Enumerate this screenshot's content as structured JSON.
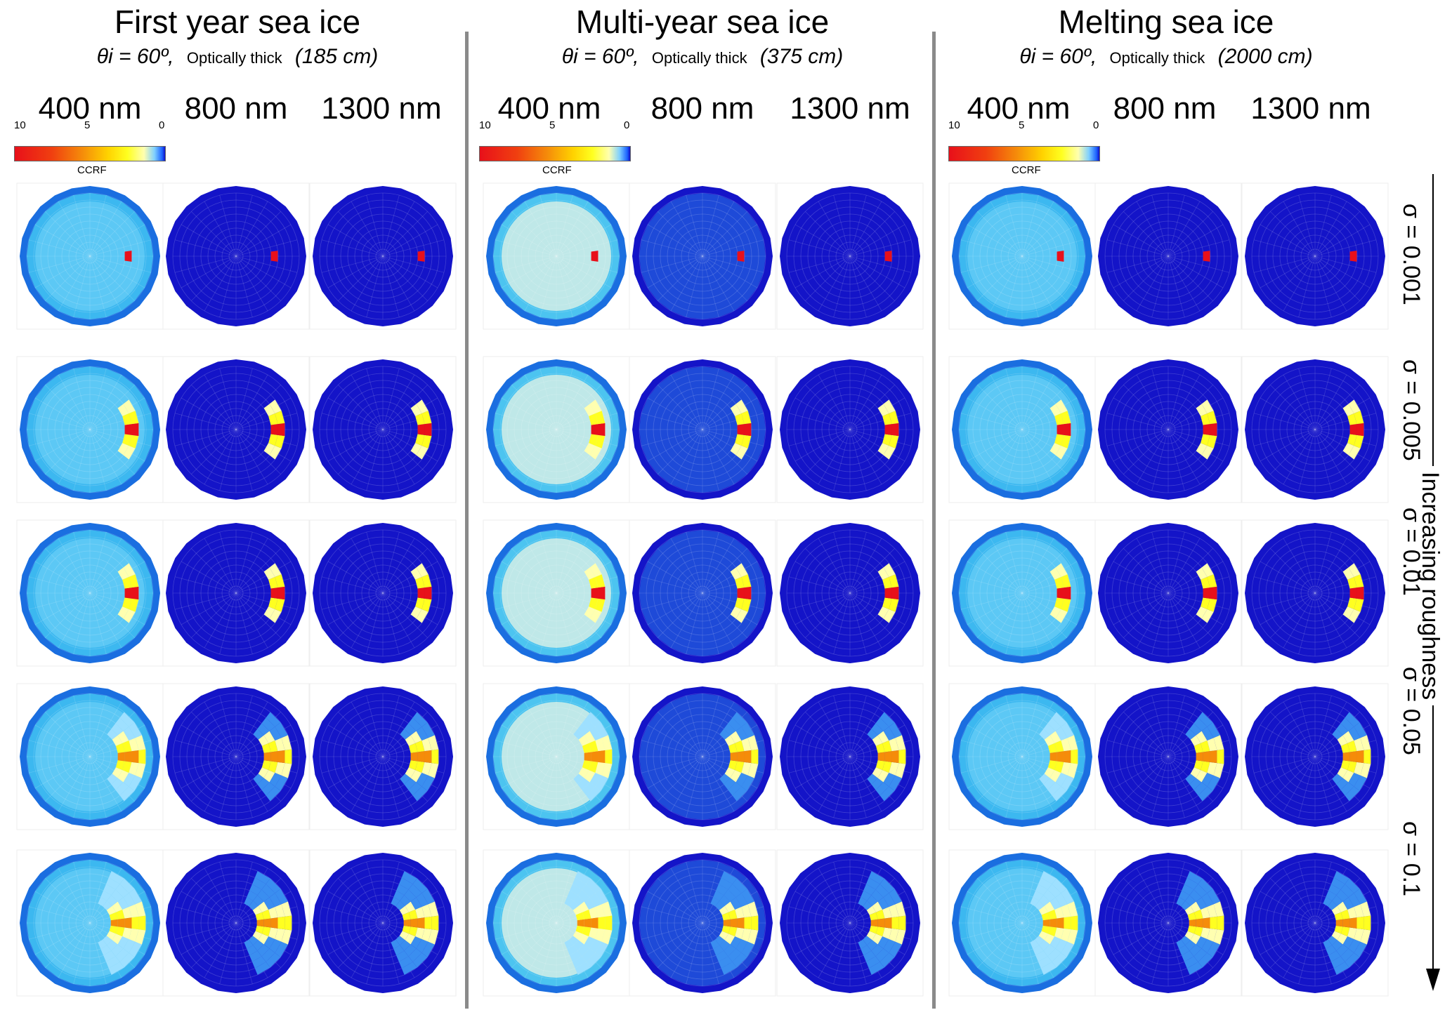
{
  "groups": [
    {
      "title": "First year sea ice",
      "theta": "θi = 60º,",
      "optical": "Optically thick",
      "thickness": "(185 cm)"
    },
    {
      "title": "Multi-year sea ice",
      "theta": "θi = 60º,",
      "optical": "Optically thick",
      "thickness": "(375 cm)"
    },
    {
      "title": "Melting sea ice",
      "theta": "θi = 60º,",
      "optical": "Optically thick",
      "thickness": "(2000 cm)"
    }
  ],
  "wavelengths": [
    "400 nm",
    "800 nm",
    "1300 nm"
  ],
  "colorbar": {
    "label": "CCRF",
    "tick_left": "10",
    "tick_mid": "5",
    "tick_right": "0",
    "range": [
      0,
      10
    ],
    "colors": [
      "#e8101a",
      "#f58c0a",
      "#ffff20",
      "#ffffb0",
      "#7fd0ff",
      "#1e64ff",
      "#1010c8"
    ]
  },
  "roughness_label": "Increasing roughness",
  "sigma_labels": [
    "σ = 0.001",
    "σ = 0.005",
    "σ = 0.01",
    "σ =  0.05",
    "σ =  0.1"
  ],
  "chart_data": {
    "type": "heatmap",
    "description_values": "Polar plots of CCRF, specular lobe in forward direction (φ=0), widening with roughness",
    "rows_sigma": [
      0.001,
      0.005,
      0.01,
      0.05,
      0.1
    ],
    "columns": [
      "First year 400 nm",
      "First year 800 nm",
      "First year 1300 nm",
      "Multi-year 400 nm",
      "Multi-year 800 nm",
      "Multi-year 1300 nm",
      "Melting 400 nm",
      "Melting 800 nm",
      "Melting 1300 nm"
    ],
    "background_ccrf": [
      0.6,
      0.05,
      0.02,
      0.9,
      0.12,
      0.02,
      0.6,
      0.04,
      0.02
    ],
    "peak_ccrf": 10,
    "colors": {
      "peak": "#e8101a",
      "high": "#f58c0a",
      "mid": "#ffff20",
      "low": "#ffffb0",
      "bg400": "#5cc8f5",
      "bgmy400": "#bfe8e8",
      "rim": "#1a6ee0",
      "dark": "#1414c8",
      "mid800": "#1e4ad8"
    }
  }
}
